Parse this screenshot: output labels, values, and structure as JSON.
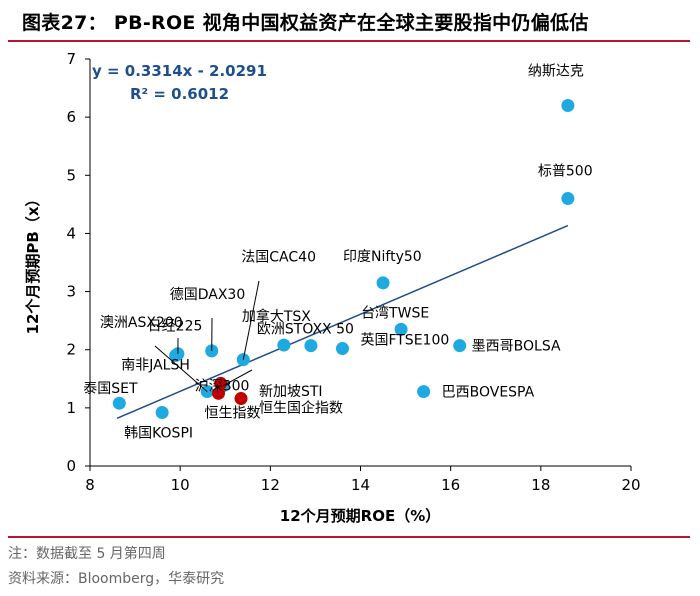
{
  "page": {
    "title": "图表27： PB-ROE 视角中国权益资产在全球主要股指中仍偏低估",
    "note": "注：数据截至 5 月第四周",
    "source": "资料来源：Bloomberg，华泰研究",
    "accent_color": "#b8182d"
  },
  "chart_data": {
    "type": "scatter",
    "title": "",
    "xlabel": "12个月预期ROE（%）",
    "ylabel": "12个月预期PB（x）",
    "xlim": [
      8,
      20
    ],
    "ylim": [
      0,
      7
    ],
    "xticks": [
      8,
      10,
      12,
      14,
      16,
      18,
      20
    ],
    "yticks": [
      0,
      1,
      2,
      3,
      4,
      5,
      6,
      7
    ],
    "grid": false,
    "legend": "none",
    "trendline": {
      "equation": "y = 0.3314x - 2.0291",
      "r2": "R² = 0.6012",
      "slope": 0.3314,
      "intercept": -2.0291,
      "x_range": [
        8.6,
        18.6
      ],
      "color": "#1f4e8c"
    },
    "colors": {
      "blue_point": "#1fa9e1",
      "red_point": "#c00000",
      "annotation_text": "#1f4e8c"
    },
    "points": [
      {
        "label": "纳斯达克",
        "x": 18.6,
        "y": 6.2,
        "group": "global"
      },
      {
        "label": "标普500",
        "x": 18.6,
        "y": 4.6,
        "group": "global"
      },
      {
        "label": "印度Nifty50",
        "x": 14.5,
        "y": 3.15,
        "group": "global"
      },
      {
        "label": "台湾TWSE",
        "x": 14.9,
        "y": 2.35,
        "group": "global"
      },
      {
        "label": "英国FTSE100",
        "x": 13.6,
        "y": 2.02,
        "group": "global"
      },
      {
        "label": "墨西哥BOLSA",
        "x": 16.2,
        "y": 2.07,
        "group": "global"
      },
      {
        "label": "巴西BOVESPA",
        "x": 15.4,
        "y": 1.28,
        "group": "global"
      },
      {
        "label": "加拿大TSX",
        "x": 12.3,
        "y": 2.08,
        "group": "global"
      },
      {
        "label": "欧洲STOXX 50",
        "x": 12.9,
        "y": 2.07,
        "group": "global"
      },
      {
        "label": "法国CAC40",
        "x": 11.4,
        "y": 1.83,
        "group": "global"
      },
      {
        "label": "德国DAX30",
        "x": 10.7,
        "y": 1.98,
        "group": "global"
      },
      {
        "label": "日经225",
        "x": 9.9,
        "y": 1.9,
        "group": "global"
      },
      {
        "label": "澳洲ASX200",
        "x": 9.95,
        "y": 1.93,
        "group": "global"
      },
      {
        "label": "南非JALSH",
        "x": 10.6,
        "y": 1.28,
        "group": "global"
      },
      {
        "label": "新加坡STI",
        "x": 10.95,
        "y": 1.38,
        "group": "global"
      },
      {
        "label": "泰国SET",
        "x": 8.65,
        "y": 1.08,
        "group": "global"
      },
      {
        "label": "韩国KOSPI",
        "x": 9.6,
        "y": 0.92,
        "group": "global"
      },
      {
        "label": "沪深300",
        "x": 10.9,
        "y": 1.42,
        "group": "china"
      },
      {
        "label": "恒生指数",
        "x": 10.85,
        "y": 1.25,
        "group": "china"
      },
      {
        "label": "恒生国企指数",
        "x": 11.35,
        "y": 1.16,
        "group": "china"
      }
    ]
  }
}
